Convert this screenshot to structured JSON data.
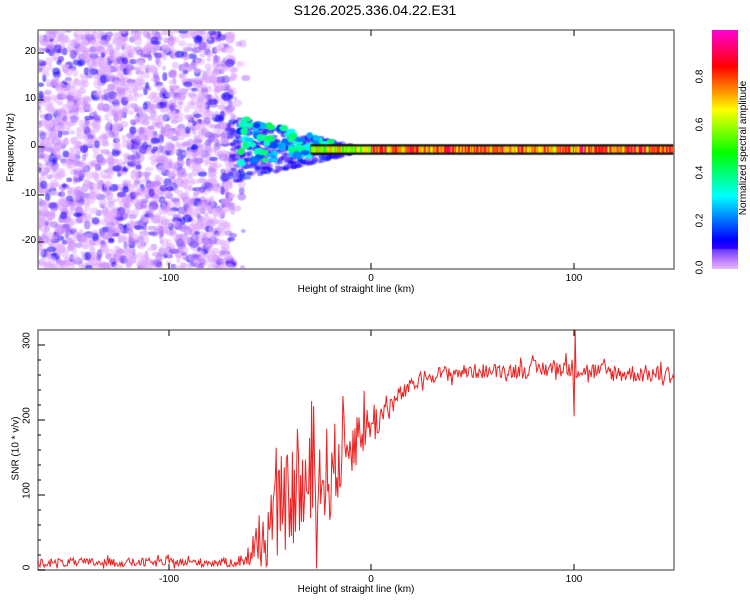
{
  "title": "S126.2025.336.04.22.E31",
  "colors": {
    "snr_line": "#ee2222",
    "frame": "#777777",
    "noise": "#9933ee"
  },
  "chart_data": [
    {
      "type": "heatmap",
      "title": "S126.2025.336.04.22.E31",
      "xlabel": "Height of straight line (km)",
      "ylabel": "Frequency (Hz)",
      "xlim": [
        -165,
        150
      ],
      "ylim": [
        -25,
        25
      ],
      "xticks": [
        "-100",
        "0",
        "100"
      ],
      "yticks": [
        "20",
        "10",
        "0",
        "-10",
        "-20"
      ],
      "colorbar": {
        "label": "Normalized spectral amplitude",
        "ticks": [
          "0.0",
          "0.2",
          "0.4",
          "0.6",
          "0.8"
        ],
        "range": [
          0,
          1
        ]
      },
      "noise_region_km": [
        -165,
        -68
      ],
      "signal_line_hz": 0,
      "signal_region_km": [
        -70,
        150
      ]
    },
    {
      "type": "line",
      "xlabel": "Height of straight line (km)",
      "ylabel": "SNR (10 * v/v)",
      "xlim": [
        -165,
        150
      ],
      "ylim": [
        0,
        320
      ],
      "xticks": [
        "-100",
        "0",
        "100"
      ],
      "yticks": [
        "0",
        "100",
        "200",
        "300"
      ],
      "x": [
        -165,
        -160,
        -155,
        -150,
        -145,
        -140,
        -135,
        -130,
        -125,
        -120,
        -115,
        -110,
        -105,
        -100,
        -95,
        -90,
        -85,
        -80,
        -75,
        -70,
        -65,
        -60,
        -55,
        -50,
        -45,
        -40,
        -35,
        -30,
        -25,
        -20,
        -15,
        -10,
        -5,
        0,
        5,
        10,
        15,
        20,
        25,
        30,
        35,
        40,
        45,
        50,
        55,
        60,
        65,
        70,
        75,
        80,
        85,
        90,
        95,
        100,
        105,
        110,
        115,
        120,
        125,
        130,
        135,
        140,
        145,
        150
      ],
      "mean": [
        10,
        10,
        10,
        10,
        10,
        10,
        10,
        10,
        10,
        10,
        10,
        10,
        10,
        10,
        10,
        10,
        10,
        10,
        10,
        10,
        12,
        18,
        30,
        55,
        80,
        95,
        105,
        110,
        120,
        130,
        150,
        170,
        185,
        195,
        205,
        220,
        235,
        245,
        255,
        260,
        262,
        263,
        264,
        265,
        265,
        265,
        266,
        266,
        267,
        268,
        268,
        270,
        270,
        268,
        266,
        265,
        264,
        263,
        262,
        262,
        262,
        261,
        261,
        261
      ],
      "noise": [
        6,
        6,
        6,
        6,
        6,
        6,
        6,
        6,
        6,
        6,
        6,
        6,
        6,
        6,
        6,
        6,
        6,
        6,
        6,
        6,
        8,
        15,
        30,
        50,
        60,
        65,
        70,
        70,
        70,
        65,
        55,
        45,
        35,
        30,
        25,
        15,
        12,
        10,
        10,
        10,
        10,
        10,
        10,
        10,
        10,
        10,
        10,
        10,
        12,
        12,
        12,
        12,
        12,
        14,
        12,
        12,
        12,
        12,
        12,
        12,
        12,
        12,
        12,
        12
      ]
    }
  ]
}
